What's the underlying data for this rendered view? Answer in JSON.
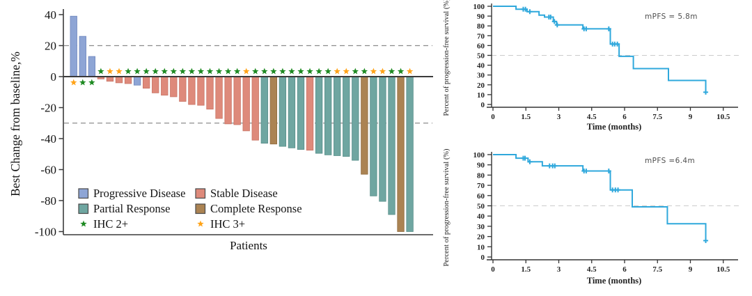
{
  "figure_title": "",
  "colors": {
    "km_line": "#2FA8DC",
    "axis": "#3a3a3a",
    "reference_dash_waterfall": "#8c8c8c",
    "reference_dash_km": "#cbcbcb",
    "progressive_disease": "#8EA5D5",
    "stable_disease": "#DE8A7B",
    "partial_response": "#6FA6A1",
    "complete_response": "#AB8353",
    "ihc2_star": "#1E8A22",
    "ihc3_star": "#FFA318"
  },
  "chart_data": [
    {
      "id": "waterfall",
      "type": "bar",
      "title": "",
      "xlabel": "Patients",
      "ylabel": "Best Change from baseline,%",
      "ylim": [
        -100,
        40
      ],
      "yticks": [
        40,
        20,
        0,
        -20,
        -40,
        -60,
        -80,
        -100
      ],
      "reference_lines": [
        20,
        -30
      ],
      "grid": false,
      "legend_position": "inside-bottom-left",
      "legend": [
        {
          "key": "PD",
          "label": "Progressive Disease",
          "swatch": "box",
          "color": "#8EA5D5",
          "stroke": "#6E86BC"
        },
        {
          "key": "SD",
          "label": "Stable Disease",
          "swatch": "box",
          "color": "#DE8A7B",
          "stroke": "#C97465"
        },
        {
          "key": "PR",
          "label": "Partial Response",
          "swatch": "box",
          "color": "#6FA6A1",
          "stroke": "#578E89"
        },
        {
          "key": "CR",
          "label": "Complete Response",
          "swatch": "box",
          "color": "#AB8353",
          "stroke": "#8F6B3F"
        },
        {
          "key": "IHC2",
          "label": "IHC 2+",
          "swatch": "star",
          "color": "#1E8A22",
          "stroke": "#14661a"
        },
        {
          "key": "IHC3",
          "label": "IHC 3+",
          "swatch": "star",
          "color": "#FFA318",
          "stroke": "#d9880e"
        }
      ],
      "bars": [
        {
          "value": 39,
          "response": "PD",
          "ihc": "IHC3"
        },
        {
          "value": 26,
          "response": "PD",
          "ihc": "IHC2"
        },
        {
          "value": 13,
          "response": "PD",
          "ihc": "IHC2"
        },
        {
          "value": -1.5,
          "response": "SD",
          "ihc": "IHC2"
        },
        {
          "value": -3,
          "response": "SD",
          "ihc": "IHC3"
        },
        {
          "value": -4,
          "response": "SD",
          "ihc": "IHC3"
        },
        {
          "value": -4.5,
          "response": "SD",
          "ihc": "IHC2"
        },
        {
          "value": -5.5,
          "response": "PD",
          "ihc": "IHC2"
        },
        {
          "value": -7.5,
          "response": "SD",
          "ihc": "IHC2"
        },
        {
          "value": -10.5,
          "response": "SD",
          "ihc": "IHC2"
        },
        {
          "value": -12,
          "response": "SD",
          "ihc": "IHC2"
        },
        {
          "value": -13,
          "response": "SD",
          "ihc": "IHC2"
        },
        {
          "value": -16,
          "response": "SD",
          "ihc": "IHC2"
        },
        {
          "value": -18,
          "response": "SD",
          "ihc": "IHC2"
        },
        {
          "value": -18.5,
          "response": "SD",
          "ihc": "IHC2"
        },
        {
          "value": -21,
          "response": "SD",
          "ihc": "IHC2"
        },
        {
          "value": -27,
          "response": "SD",
          "ihc": "IHC2"
        },
        {
          "value": -30.5,
          "response": "SD",
          "ihc": "IHC2"
        },
        {
          "value": -31,
          "response": "SD",
          "ihc": "IHC2"
        },
        {
          "value": -35,
          "response": "SD",
          "ihc": "IHC3"
        },
        {
          "value": -41,
          "response": "SD",
          "ihc": "IHC2"
        },
        {
          "value": -43,
          "response": "PR",
          "ihc": "IHC2"
        },
        {
          "value": -43.5,
          "response": "CR",
          "ihc": "IHC2"
        },
        {
          "value": -45,
          "response": "PR",
          "ihc": "IHC2"
        },
        {
          "value": -46,
          "response": "PR",
          "ihc": "IHC2"
        },
        {
          "value": -47,
          "response": "PR",
          "ihc": "IHC2"
        },
        {
          "value": -47.5,
          "response": "SD",
          "ihc": "IHC2"
        },
        {
          "value": -49.5,
          "response": "PR",
          "ihc": "IHC2"
        },
        {
          "value": -50.5,
          "response": "PR",
          "ihc": "IHC2"
        },
        {
          "value": -51,
          "response": "PR",
          "ihc": "IHC3"
        },
        {
          "value": -51.5,
          "response": "PR",
          "ihc": "IHC3"
        },
        {
          "value": -54,
          "response": "PR",
          "ihc": "IHC2"
        },
        {
          "value": -63,
          "response": "CR",
          "ihc": "IHC2"
        },
        {
          "value": -77,
          "response": "PR",
          "ihc": "IHC3"
        },
        {
          "value": -80.5,
          "response": "PR",
          "ihc": "IHC3"
        },
        {
          "value": -89,
          "response": "PR",
          "ihc": "IHC2"
        },
        {
          "value": -100,
          "response": "CR",
          "ihc": "IHC2"
        },
        {
          "value": -100,
          "response": "PR",
          "ihc": "IHC3"
        }
      ]
    },
    {
      "id": "km-top",
      "type": "line",
      "subtype": "kaplan-meier-step",
      "annotation": "mPFS = 5.8m",
      "xlabel": "Time (months)",
      "ylabel": "Percent of progression-free survival (%)",
      "xlim": [
        0,
        10.5
      ],
      "ylim": [
        0,
        100
      ],
      "xticks": [
        0,
        1.5,
        3,
        4.5,
        6,
        7.5,
        9,
        10.5
      ],
      "yticks": [
        100,
        90,
        80,
        70,
        60,
        50,
        40,
        30,
        20,
        10,
        0
      ],
      "median_reference_line": 50,
      "start_value": 100,
      "drops": [
        [
          1.05,
          97
        ],
        [
          1.55,
          94.5
        ],
        [
          2.1,
          91
        ],
        [
          2.35,
          89
        ],
        [
          2.75,
          84.5
        ],
        [
          2.9,
          81
        ],
        [
          4.1,
          77
        ],
        [
          5.35,
          61.5
        ],
        [
          5.75,
          49
        ],
        [
          6.4,
          36.5
        ],
        [
          8.0,
          24.5
        ],
        [
          9.7,
          12.5
        ]
      ],
      "end_time": 9.72,
      "censors": [
        [
          1.38,
          97
        ],
        [
          1.48,
          97
        ],
        [
          1.68,
          94.5
        ],
        [
          2.55,
          89
        ],
        [
          2.63,
          89
        ],
        [
          2.8,
          84.5
        ],
        [
          2.93,
          81
        ],
        [
          4.15,
          77
        ],
        [
          4.25,
          77
        ],
        [
          5.28,
          77
        ],
        [
          5.45,
          61.5
        ],
        [
          5.55,
          61.5
        ],
        [
          5.67,
          61.5
        ],
        [
          9.7,
          12.5
        ]
      ]
    },
    {
      "id": "km-bottom",
      "type": "line",
      "subtype": "kaplan-meier-step",
      "annotation": "mPFS =6.4m",
      "xlabel": "Time (months)",
      "ylabel": "Percent of progression-free survival (%)",
      "xlim": [
        0,
        10.5
      ],
      "ylim": [
        0,
        100
      ],
      "xticks": [
        0,
        1.5,
        3,
        4.5,
        6,
        7.5,
        9,
        10.5
      ],
      "yticks": [
        100,
        90,
        80,
        70,
        60,
        50,
        40,
        30,
        20,
        10,
        0
      ],
      "median_reference_line": 50,
      "start_value": 100,
      "drops": [
        [
          1.05,
          96.5
        ],
        [
          1.6,
          93
        ],
        [
          2.25,
          89
        ],
        [
          4.1,
          84
        ],
        [
          5.35,
          65.5
        ],
        [
          6.35,
          49
        ],
        [
          7.95,
          32.5
        ],
        [
          9.7,
          16
        ]
      ],
      "end_time": 9.7,
      "censors": [
        [
          1.38,
          96.5
        ],
        [
          1.46,
          96.5
        ],
        [
          1.68,
          93
        ],
        [
          2.58,
          89
        ],
        [
          2.72,
          89
        ],
        [
          2.82,
          89
        ],
        [
          4.15,
          84
        ],
        [
          4.25,
          84
        ],
        [
          5.28,
          84
        ],
        [
          5.45,
          65.5
        ],
        [
          5.58,
          65.5
        ],
        [
          5.7,
          65.5
        ],
        [
          9.7,
          16
        ]
      ]
    }
  ]
}
